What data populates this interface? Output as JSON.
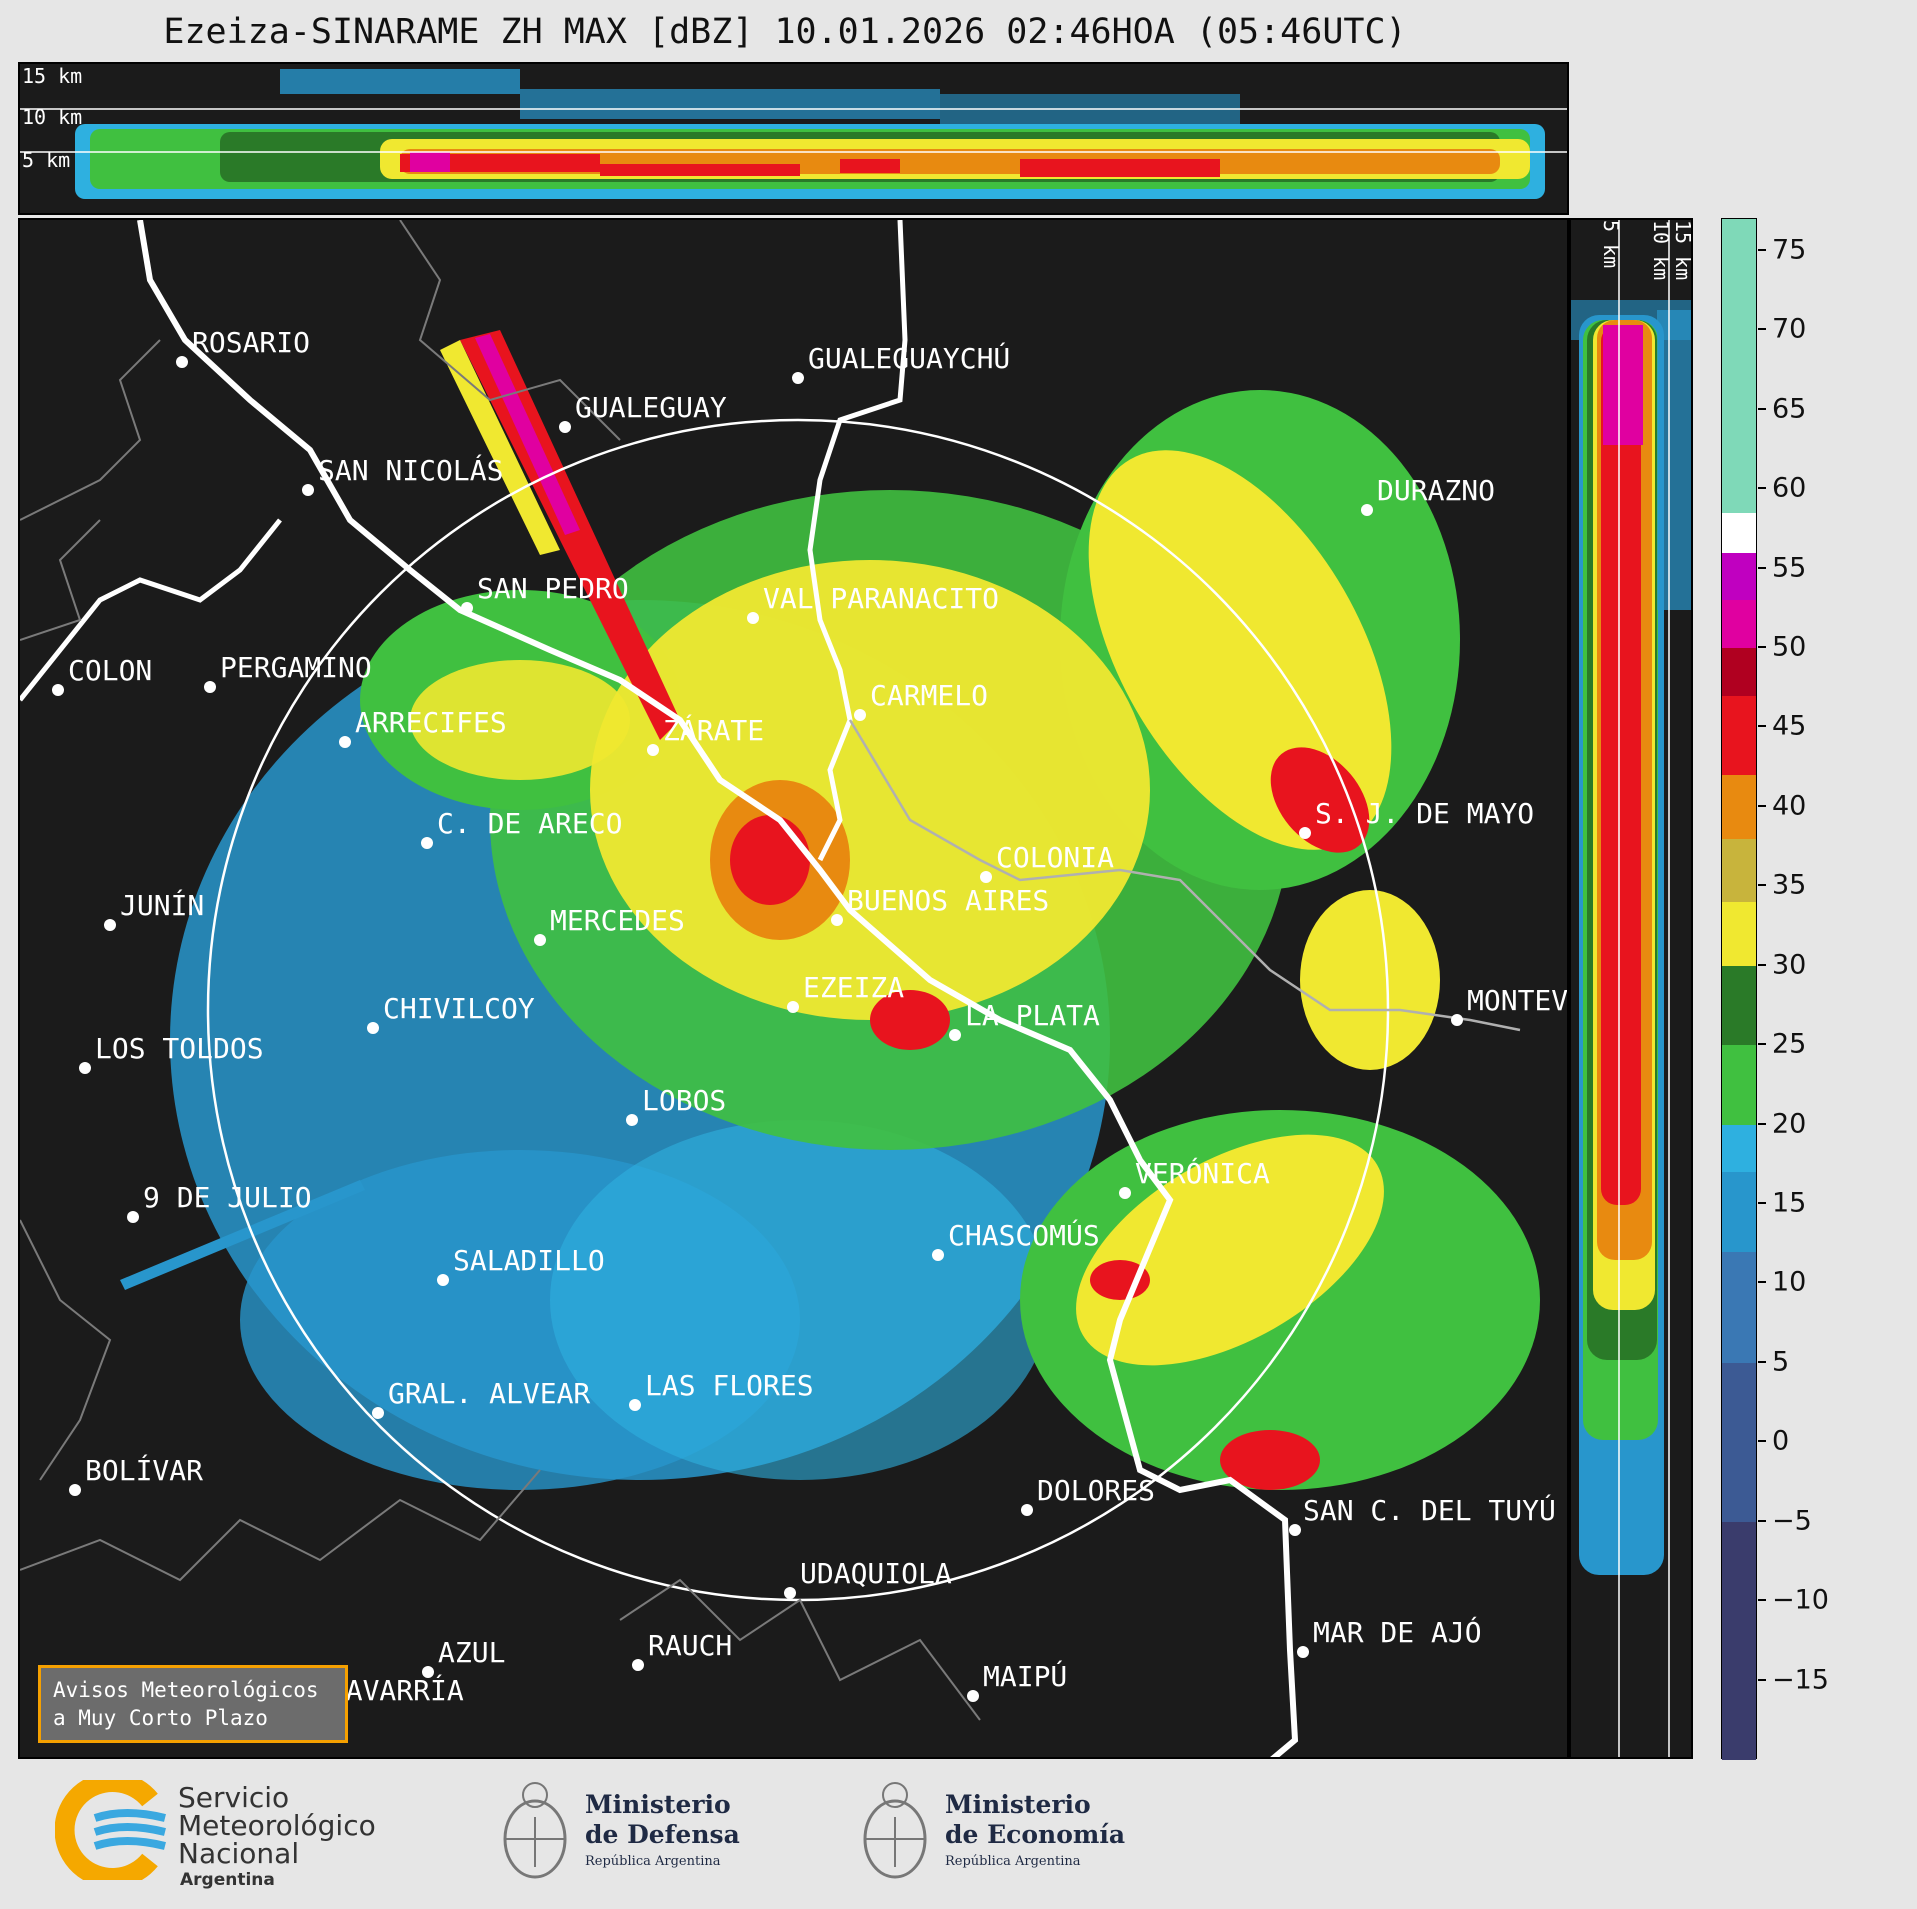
{
  "title": "Ezeiza-SINARAME ZH MAX [dBZ] 10.01.2026 02:46HOA (05:46UTC)",
  "top_profile": {
    "height_labels": [
      "15 km",
      "10 km",
      "5 km"
    ]
  },
  "side_profile": {
    "height_labels": [
      "5 km",
      "10 km",
      "15 km"
    ]
  },
  "colorbar": {
    "unit": "dBZ",
    "ticks": [
      "75",
      "70",
      "65",
      "60",
      "55",
      "50",
      "45",
      "40",
      "35",
      "30",
      "25",
      "20",
      "15",
      "10",
      "5",
      "0",
      "−5",
      "−10",
      "−15"
    ],
    "range": [
      -20,
      77
    ],
    "colors": [
      {
        "from": 58.5,
        "to": 77,
        "color": "#7fd9b8"
      },
      {
        "from": 56,
        "to": 58.5,
        "color": "#ffffff"
      },
      {
        "from": 53,
        "to": 56,
        "color": "#c000c0"
      },
      {
        "from": 50,
        "to": 53,
        "color": "#e000a0"
      },
      {
        "from": 47,
        "to": 50,
        "color": "#b00020"
      },
      {
        "from": 42,
        "to": 47,
        "color": "#e8141e"
      },
      {
        "from": 38,
        "to": 42,
        "color": "#e88a10"
      },
      {
        "from": 34,
        "to": 38,
        "color": "#c8b43c"
      },
      {
        "from": 30,
        "to": 34,
        "color": "#f0e830"
      },
      {
        "from": 25,
        "to": 30,
        "color": "#2a7a28"
      },
      {
        "from": 20,
        "to": 25,
        "color": "#40c040"
      },
      {
        "from": 17,
        "to": 20,
        "color": "#2eb0e0"
      },
      {
        "from": 12,
        "to": 17,
        "color": "#2896cc"
      },
      {
        "from": 5,
        "to": 12,
        "color": "#3a78b4"
      },
      {
        "from": -5,
        "to": 5,
        "color": "#3c5a94"
      },
      {
        "from": -20,
        "to": -5,
        "color": "#3a3c6c"
      }
    ]
  },
  "cities": [
    {
      "name": "ROSARIO"
    },
    {
      "name": "GUALEGUAYCHÚ"
    },
    {
      "name": "GUALEGUAY"
    },
    {
      "name": "SAN NICOLÁS"
    },
    {
      "name": "DURAZNO"
    },
    {
      "name": "SAN PEDRO"
    },
    {
      "name": "VAL PARANACITO"
    },
    {
      "name": "COLON"
    },
    {
      "name": "PERGAMINO"
    },
    {
      "name": "CARMELO"
    },
    {
      "name": "ZÁRATE"
    },
    {
      "name": "ARRECIFES"
    },
    {
      "name": "S. J. DE MAYO"
    },
    {
      "name": "C. DE ARECO"
    },
    {
      "name": "COLONIA"
    },
    {
      "name": "JUNÍN"
    },
    {
      "name": "BUENOS AIRES"
    },
    {
      "name": "MERCEDES"
    },
    {
      "name": "EZEIZA"
    },
    {
      "name": "MONTEVIDEO"
    },
    {
      "name": "CHIVILCOY"
    },
    {
      "name": "LA PLATA"
    },
    {
      "name": "LOS TOLDOS"
    },
    {
      "name": "LOBOS"
    },
    {
      "name": "VERÓNICA"
    },
    {
      "name": "9 DE JULIO"
    },
    {
      "name": "CHASCOMÚS"
    },
    {
      "name": "SALADILLO"
    },
    {
      "name": "GRAL. ALVEAR"
    },
    {
      "name": "LAS FLORES"
    },
    {
      "name": "BOLÍVAR"
    },
    {
      "name": "DOLORES"
    },
    {
      "name": "SAN C. DEL TUYÚ"
    },
    {
      "name": "UDAQUIOLA"
    },
    {
      "name": "MAR DE AJÓ"
    },
    {
      "name": "AZUL"
    },
    {
      "name": "RAUCH"
    },
    {
      "name": "OLAVARRÍA"
    },
    {
      "name": "MAIPÚ"
    }
  ],
  "aviso": {
    "line1": "Avisos Meteorológicos",
    "line2": "a Muy Corto Plazo"
  },
  "footer": {
    "smn": {
      "line1": "Servicio",
      "line2": "Meteorológico",
      "line3": "Nacional",
      "line4": "Argentina"
    },
    "defensa": {
      "line1": "Ministerio",
      "line2": "de Defensa",
      "line3": "República Argentina"
    },
    "economia": {
      "line1": "Ministerio",
      "line2": "de Economía",
      "line3": "República Argentina"
    }
  }
}
